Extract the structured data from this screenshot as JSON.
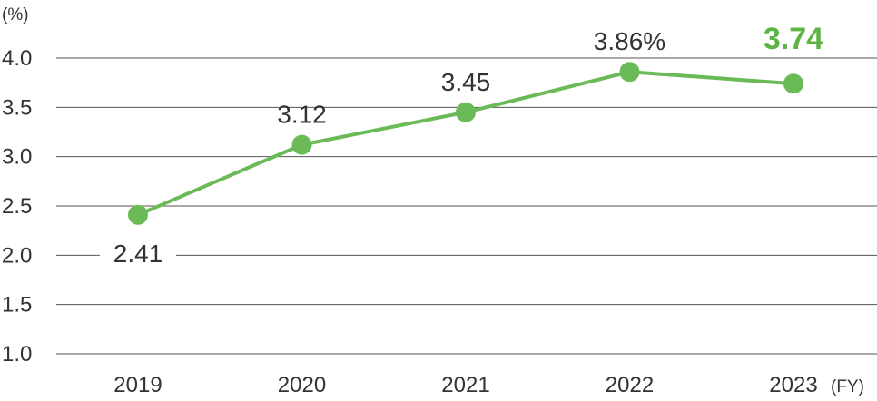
{
  "chart_data": {
    "type": "line",
    "y_unit_label": "(%)",
    "x_unit_label": "(FY)",
    "categories": [
      "2019",
      "2020",
      "2021",
      "2022",
      "2023"
    ],
    "values": [
      2.41,
      3.12,
      3.45,
      3.86,
      3.74
    ],
    "data_labels": [
      "2.41",
      "3.12",
      "3.45",
      "3.86%",
      "3.74"
    ],
    "ylim": [
      1.0,
      4.0
    ],
    "yticks": [
      "1.0",
      "1.5",
      "2.0",
      "2.5",
      "3.0",
      "3.5",
      "4.0"
    ],
    "grid": true,
    "colors": {
      "line": "#6abb57",
      "highlight_label": "#5db445",
      "text": "#333333",
      "grid": "#555555"
    }
  }
}
